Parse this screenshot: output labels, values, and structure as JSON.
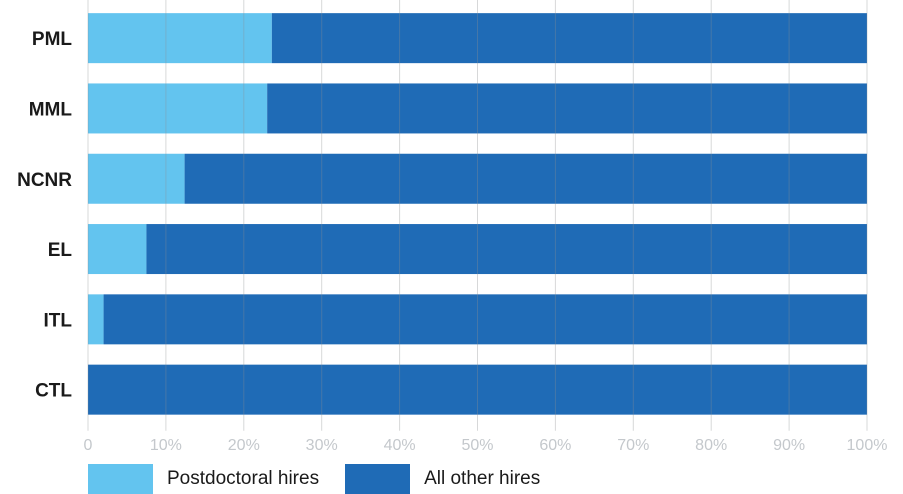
{
  "colors": {
    "postdoc": "#63c4ef",
    "other": "#1f6bb6",
    "grid": "#8c8f93"
  },
  "chart_data": {
    "type": "bar",
    "orientation": "horizontal",
    "stacked": true,
    "categories": [
      "PML",
      "MML",
      "NCNR",
      "EL",
      "ITL",
      "CTL"
    ],
    "series": [
      {
        "name": "Postdoctoral hires",
        "values": [
          23.6,
          23.0,
          12.4,
          7.5,
          2.0,
          0.0
        ]
      },
      {
        "name": "All other hires",
        "values": [
          76.4,
          77.0,
          87.6,
          92.5,
          98.0,
          100.0
        ]
      }
    ],
    "xlim": [
      0,
      100
    ],
    "xticks": [
      "0",
      "10%",
      "20%",
      "30%",
      "40%",
      "50%",
      "60%",
      "70%",
      "80%",
      "90%",
      "100%"
    ],
    "grid": true,
    "legend_position": "bottom-left"
  },
  "legend": {
    "items": [
      {
        "label": "Postdoctoral hires"
      },
      {
        "label": "All other hires"
      }
    ]
  }
}
